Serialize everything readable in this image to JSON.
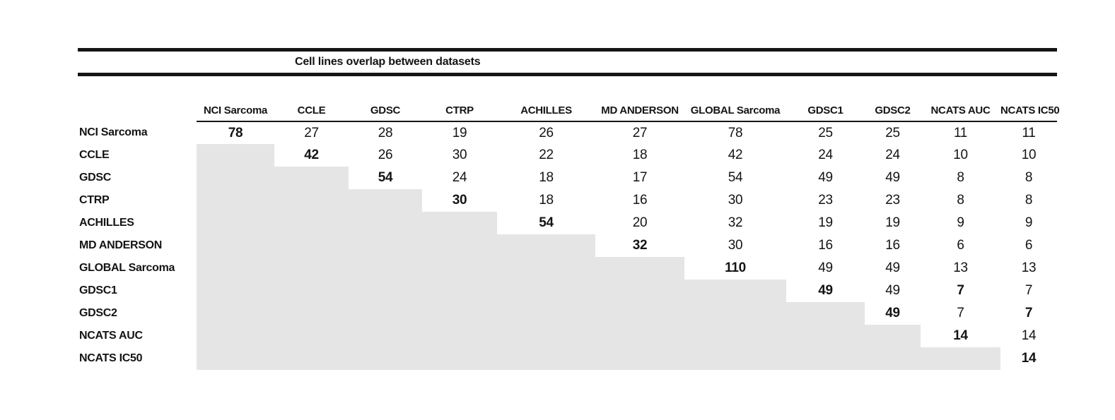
{
  "title": "Cell lines overlap between datasets",
  "table": {
    "columns": [
      "NCI Sarcoma",
      "CCLE",
      "GDSC",
      "CTRP",
      "ACHILLES",
      "MD ANDERSON",
      "GLOBAL Sarcoma",
      "GDSC1",
      "GDSC2",
      "NCATS AUC",
      "NCATS IC50"
    ],
    "rows": [
      {
        "label": "NCI Sarcoma",
        "values": [
          78,
          27,
          28,
          19,
          26,
          27,
          78,
          25,
          25,
          11,
          11
        ],
        "bold_cols": [
          0
        ]
      },
      {
        "label": "CCLE",
        "values": [
          null,
          42,
          26,
          30,
          22,
          18,
          42,
          24,
          24,
          10,
          10
        ],
        "bold_cols": [
          1
        ]
      },
      {
        "label": "GDSC",
        "values": [
          null,
          null,
          54,
          24,
          18,
          17,
          54,
          49,
          49,
          8,
          8
        ],
        "bold_cols": [
          2
        ]
      },
      {
        "label": "CTRP",
        "values": [
          null,
          null,
          null,
          30,
          18,
          16,
          30,
          23,
          23,
          8,
          8
        ],
        "bold_cols": [
          3
        ]
      },
      {
        "label": "ACHILLES",
        "values": [
          null,
          null,
          null,
          null,
          54,
          20,
          32,
          19,
          19,
          9,
          9
        ],
        "bold_cols": [
          4
        ]
      },
      {
        "label": "MD ANDERSON",
        "values": [
          null,
          null,
          null,
          null,
          null,
          32,
          30,
          16,
          16,
          6,
          6
        ],
        "bold_cols": [
          5
        ]
      },
      {
        "label": "GLOBAL Sarcoma",
        "values": [
          null,
          null,
          null,
          null,
          null,
          null,
          110,
          49,
          49,
          13,
          13
        ],
        "bold_cols": [
          6
        ]
      },
      {
        "label": "GDSC1",
        "values": [
          null,
          null,
          null,
          null,
          null,
          null,
          null,
          49,
          49,
          7,
          7
        ],
        "bold_cols": [
          7,
          9
        ]
      },
      {
        "label": "GDSC2",
        "values": [
          null,
          null,
          null,
          null,
          null,
          null,
          null,
          null,
          49,
          7,
          7
        ],
        "bold_cols": [
          8,
          10
        ]
      },
      {
        "label": "NCATS AUC",
        "values": [
          null,
          null,
          null,
          null,
          null,
          null,
          null,
          null,
          null,
          14,
          14
        ],
        "bold_cols": [
          9
        ]
      },
      {
        "label": "NCATS IC50",
        "values": [
          null,
          null,
          null,
          null,
          null,
          null,
          null,
          null,
          null,
          null,
          14
        ],
        "bold_cols": [
          10
        ]
      }
    ],
    "colors": {
      "shaded_cell": "#e6e5e6",
      "rule": "#151515",
      "text": "#141414"
    }
  }
}
